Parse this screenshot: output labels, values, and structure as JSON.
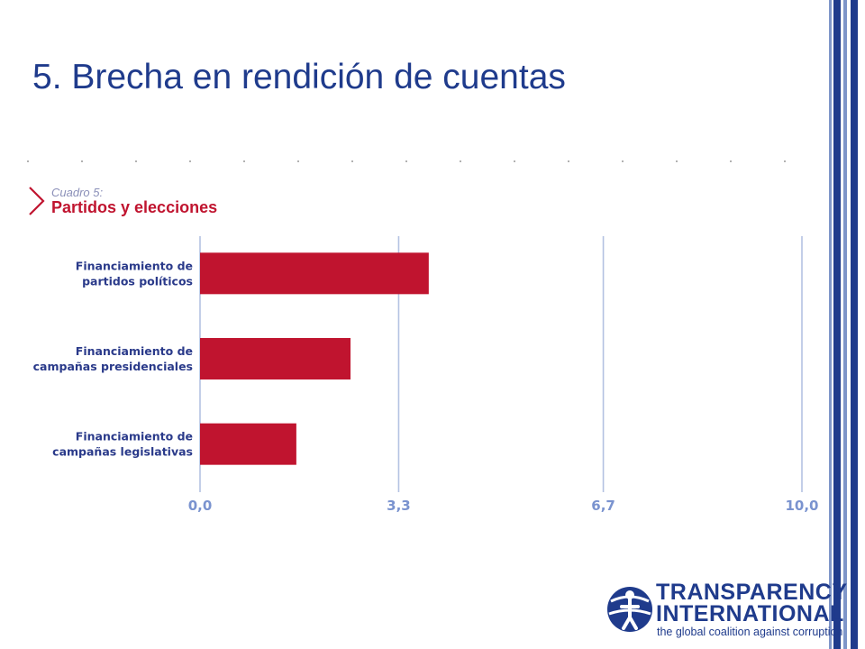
{
  "slide": {
    "title": "5. Brecha en rendición de cuentas"
  },
  "colors": {
    "title": "#1f3b8c",
    "bar": "#c0142f",
    "grid": "#b4c2e2",
    "stripe_dark": "#1f3b8c",
    "stripe_light": "#7f96c9"
  },
  "chart_data": {
    "type": "bar",
    "orientation": "horizontal",
    "subtitle": "Cuadro 5:",
    "title": "Partidos y elecciones",
    "categories": [
      [
        "Financiamiento de",
        "partidos políticos"
      ],
      [
        "Financiamiento de",
        "campañas presidenciales"
      ],
      [
        "Financiamiento de",
        "campañas legislativas"
      ]
    ],
    "values": [
      3.8,
      2.5,
      1.6
    ],
    "xlim": [
      0,
      10
    ],
    "ticks": [
      0,
      3.3,
      6.7,
      10
    ],
    "tick_labels": [
      "0,0",
      "3,3",
      "6,7",
      "10,0"
    ],
    "grid": true
  },
  "logo": {
    "name": "transparency-international-logo",
    "line1": "TRANSPARENCY",
    "line2": "INTERNATIONAL",
    "tagline": "the global coalition against corruption"
  }
}
